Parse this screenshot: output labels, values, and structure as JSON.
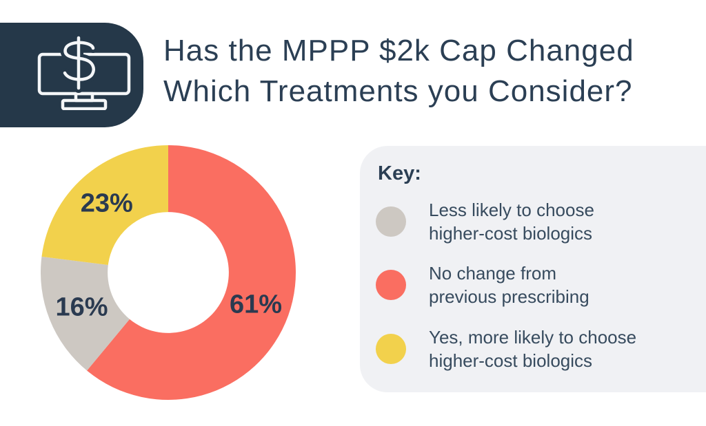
{
  "colors": {
    "page_background": "#FFFFFF",
    "navy": "#2B3F54",
    "icon_card": "#253849",
    "legend_panel": "#F0F1F4",
    "legend_text": "#374B5E",
    "data_label": "#2A3A50"
  },
  "header": {
    "icon": "monitor-dollar-icon",
    "title_line1": "Has the MPPP $2k Cap Changed",
    "title_line2": "Which Treatments you Consider?"
  },
  "chart_data": {
    "type": "pie",
    "style": "donut",
    "title": "Has the MPPP $2k Cap Changed Which Treatments you Consider?",
    "direction": "clockwise",
    "start_angle_deg": 0,
    "inner_radius_ratio": 0.475,
    "data_label_color": "#2A3A50",
    "legend_position": "right",
    "slices": [
      {
        "label": "No change from previous prescribing",
        "value": 61,
        "display": "61%",
        "color": "#FA6E61"
      },
      {
        "label": "Less likely to choose higher-cost biologics",
        "value": 16,
        "display": "16%",
        "color": "#CDC8C2"
      },
      {
        "label": "Yes, more likely to choose higher-cost biologics",
        "value": 23,
        "display": "23%",
        "color": "#F2D14C"
      }
    ]
  },
  "legend": {
    "heading": "Key:",
    "items": [
      {
        "swatch_color": "#CDC8C2",
        "line1": "Less likely to choose",
        "line2": "higher-cost biologics"
      },
      {
        "swatch_color": "#FA6E61",
        "line1": "No change from",
        "line2": "previous prescribing"
      },
      {
        "swatch_color": "#F2D14C",
        "line1": "Yes, more likely to choose",
        "line2": "higher-cost biologics"
      }
    ]
  }
}
